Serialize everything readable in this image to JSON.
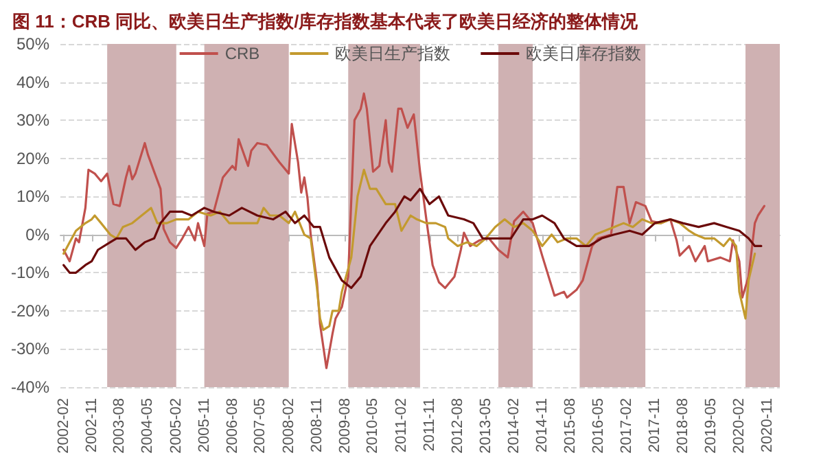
{
  "chart_data": {
    "type": "line",
    "title": "图 11：CRB 同比、欧美日生产指数/库存指数基本代表了欧美日经济的整体情况",
    "xlim": [
      "2002-01",
      "2021-03"
    ],
    "xticks": [
      "2002-02",
      "2002-11",
      "2003-08",
      "2004-05",
      "2005-02",
      "2005-11",
      "2006-08",
      "2007-05",
      "2008-02",
      "2008-11",
      "2009-08",
      "2010-05",
      "2011-02",
      "2011-11",
      "2012-08",
      "2013-05",
      "2014-02",
      "2014-11",
      "2015-08",
      "2016-05",
      "2017-02",
      "2017-11",
      "2018-08",
      "2019-05",
      "2020-02",
      "2020-11"
    ],
    "ylim": [
      -40,
      50
    ],
    "yticks": [
      {
        "value": -40,
        "label": "-40%"
      },
      {
        "value": -30,
        "label": "-30%"
      },
      {
        "value": -20,
        "label": "-20%"
      },
      {
        "value": -10,
        "label": "-10%"
      },
      {
        "value": 0,
        "label": "0%"
      },
      {
        "value": 10,
        "label": "10%"
      },
      {
        "value": 20,
        "label": "20%"
      },
      {
        "value": 30,
        "label": "30%"
      },
      {
        "value": 40,
        "label": "40%"
      },
      {
        "value": 50,
        "label": "50%"
      }
    ],
    "grid": "y",
    "legend": "top",
    "marker": "none",
    "line_style": "solid",
    "bands": [
      {
        "axis": "x",
        "from": "2003-04",
        "to": "2005-02",
        "color": "#cfb1b2"
      },
      {
        "axis": "x",
        "from": "2005-11",
        "to": "2008-02",
        "color": "#cfb1b2"
      },
      {
        "axis": "x",
        "from": "2009-09",
        "to": "2011-08",
        "color": "#cfb1b2"
      },
      {
        "axis": "x",
        "from": "2013-09",
        "to": "2014-08",
        "color": "#cfb1b2"
      },
      {
        "axis": "x",
        "from": "2015-11",
        "to": "2017-08",
        "color": "#cfb1b2"
      },
      {
        "axis": "x",
        "from": "2020-04",
        "to": "2021-03",
        "color": "#cfb1b2"
      }
    ],
    "series": [
      {
        "name": "CRB",
        "color": "#c0504d",
        "x": [
          "2002-02",
          "2002-04",
          "2002-06",
          "2002-07",
          "2002-09",
          "2002-10",
          "2002-12",
          "2003-02",
          "2003-04",
          "2003-06",
          "2003-08",
          "2003-10",
          "2003-11",
          "2003-12",
          "2004-01",
          "2004-04",
          "2004-05",
          "2004-07",
          "2004-09",
          "2004-10",
          "2004-12",
          "2005-02",
          "2005-04",
          "2005-06",
          "2005-08",
          "2005-09",
          "2005-11",
          "2005-12",
          "2006-02",
          "2006-05",
          "2006-08",
          "2006-09",
          "2006-10",
          "2007-01",
          "2007-02",
          "2007-04",
          "2007-07",
          "2007-11",
          "2008-02",
          "2008-03",
          "2008-05",
          "2008-06",
          "2008-07",
          "2008-08",
          "2008-09",
          "2008-11",
          "2008-12",
          "2009-02",
          "2009-04",
          "2009-05",
          "2009-07",
          "2009-09",
          "2009-11",
          "2010-01",
          "2010-02",
          "2010-03",
          "2010-05",
          "2010-07",
          "2010-09",
          "2010-10",
          "2010-11",
          "2011-01",
          "2011-02",
          "2011-04",
          "2011-06",
          "2011-08",
          "2011-10",
          "2011-12",
          "2012-02",
          "2012-04",
          "2012-07",
          "2012-09",
          "2012-10",
          "2012-12",
          "2013-03",
          "2013-06",
          "2013-09",
          "2013-12",
          "2014-02",
          "2014-05",
          "2014-06",
          "2014-08",
          "2014-11",
          "2015-03",
          "2015-06",
          "2015-07",
          "2015-10",
          "2015-12",
          "2016-03",
          "2016-05",
          "2016-09",
          "2016-11",
          "2017-01",
          "2017-03",
          "2017-05",
          "2017-08",
          "2017-10",
          "2018-01",
          "2018-04",
          "2018-06",
          "2018-07",
          "2018-10",
          "2018-12",
          "2019-03",
          "2019-04",
          "2019-08",
          "2019-11",
          "2019-12",
          "2020-02",
          "2020-03",
          "2020-05",
          "2020-07",
          "2020-08",
          "2020-10"
        ],
        "values": [
          -4,
          -7,
          -1,
          -2,
          7,
          17,
          16,
          14,
          16,
          8,
          7.5,
          15,
          18,
          14.5,
          16,
          24,
          21,
          16.5,
          12,
          1.5,
          -2,
          -3.5,
          -1,
          2,
          -1.5,
          3,
          -3,
          5.5,
          6,
          15,
          18,
          17,
          25,
          18,
          22,
          24,
          23.5,
          19,
          16,
          29,
          19,
          11,
          15,
          9.5,
          0,
          -12.5,
          -23.5,
          -35,
          -26,
          -22,
          -19,
          -11,
          30,
          33,
          37,
          33,
          16.5,
          18,
          30,
          19,
          16.5,
          33,
          33,
          28,
          31.5,
          16.5,
          4,
          -8,
          -12.5,
          -14,
          -11,
          -4,
          0.5,
          -3,
          -1.5,
          -1,
          -4,
          -6,
          3.5,
          6,
          5,
          3,
          -5.5,
          -16,
          -15,
          -16.5,
          -14.5,
          -12,
          -3,
          -1,
          0,
          12.5,
          12.5,
          3,
          8.5,
          7.5,
          3.5,
          3,
          4,
          -1.5,
          -5.5,
          -3,
          -7,
          -3,
          -7,
          -6,
          -7,
          -1.5,
          -7,
          -16.5,
          -11,
          3,
          5,
          7.5
        ]
      },
      {
        "name": "欧美日生产指数",
        "color": "#c39a2e",
        "x": [
          "2002-02",
          "2002-04",
          "2002-06",
          "2002-09",
          "2002-11",
          "2002-12",
          "2003-02",
          "2003-05",
          "2003-07",
          "2003-09",
          "2003-12",
          "2004-03",
          "2004-06",
          "2004-08",
          "2004-11",
          "2005-02",
          "2005-06",
          "2005-09",
          "2006-01",
          "2006-04",
          "2006-07",
          "2006-11",
          "2007-04",
          "2007-06",
          "2007-08",
          "2007-11",
          "2008-02",
          "2008-04",
          "2008-07",
          "2008-09",
          "2008-11",
          "2008-12",
          "2009-01",
          "2009-03",
          "2009-04",
          "2009-06",
          "2009-07",
          "2009-10",
          "2009-12",
          "2010-02",
          "2010-04",
          "2010-06",
          "2010-09",
          "2010-12",
          "2011-02",
          "2011-05",
          "2011-07",
          "2011-10",
          "2012-01",
          "2012-04",
          "2012-05",
          "2012-08",
          "2012-11",
          "2013-02",
          "2013-05",
          "2013-08",
          "2013-11",
          "2014-02",
          "2014-05",
          "2014-08",
          "2014-11",
          "2015-02",
          "2015-04",
          "2015-07",
          "2015-10",
          "2016-01",
          "2016-04",
          "2016-07",
          "2016-10",
          "2017-01",
          "2017-04",
          "2017-07",
          "2017-10",
          "2018-01",
          "2018-04",
          "2018-07",
          "2018-10",
          "2018-12",
          "2019-03",
          "2019-06",
          "2019-09",
          "2019-11",
          "2020-01",
          "2020-02",
          "2020-04",
          "2020-05",
          "2020-07"
        ],
        "values": [
          -5,
          -2,
          1,
          3,
          4,
          5,
          3,
          0,
          -1,
          2,
          3,
          5,
          7,
          3,
          3,
          4,
          4,
          6,
          5,
          6,
          3,
          3,
          3,
          7,
          5,
          5,
          3,
          6,
          0,
          -1,
          -14,
          -22,
          -25,
          -24,
          -20,
          -20,
          -15,
          -6,
          10,
          17,
          12,
          12,
          8,
          8,
          1,
          5,
          4,
          3,
          3,
          2,
          -1,
          -3,
          -2,
          -3,
          -1,
          2,
          4,
          2,
          3,
          1,
          -3,
          0,
          -2,
          -1,
          -1,
          -3,
          0,
          1,
          2,
          3,
          2,
          4,
          3,
          3,
          4,
          3,
          1,
          0,
          -1,
          -1,
          -3,
          -1,
          -3,
          -15,
          -22,
          -12,
          -5
        ]
      },
      {
        "name": "欧美日库存指数",
        "color": "#6b0a0a",
        "x": [
          "2002-02",
          "2002-04",
          "2002-06",
          "2002-09",
          "2002-11",
          "2003-01",
          "2003-05",
          "2003-07",
          "2003-10",
          "2004-01",
          "2004-04",
          "2004-07",
          "2004-09",
          "2004-12",
          "2005-04",
          "2005-07",
          "2005-11",
          "2006-02",
          "2006-07",
          "2006-11",
          "2007-04",
          "2007-09",
          "2008-01",
          "2008-04",
          "2008-07",
          "2008-10",
          "2008-12",
          "2009-03",
          "2009-07",
          "2009-10",
          "2010-01",
          "2010-04",
          "2010-09",
          "2010-12",
          "2011-03",
          "2011-05",
          "2011-08",
          "2011-11",
          "2012-02",
          "2012-05",
          "2012-10",
          "2013-01",
          "2013-04",
          "2013-06",
          "2013-10",
          "2014-01",
          "2014-05",
          "2014-08",
          "2014-11",
          "2015-03",
          "2015-06",
          "2015-10",
          "2016-02",
          "2016-06",
          "2016-10",
          "2017-03",
          "2017-07",
          "2017-11",
          "2018-04",
          "2018-08",
          "2019-01",
          "2019-06",
          "2019-10",
          "2020-02",
          "2020-05",
          "2020-07",
          "2020-09"
        ],
        "values": [
          -8,
          -10,
          -10,
          -8,
          -7,
          -4,
          -2,
          -1,
          -1,
          -4,
          -2,
          -1,
          3,
          6,
          6,
          5,
          7,
          6,
          5,
          7,
          5,
          4,
          6,
          3,
          5,
          2,
          2,
          -6,
          -12,
          -14,
          -11,
          -3,
          3,
          6,
          10,
          9,
          12,
          8,
          10,
          5,
          4,
          3,
          -1,
          -1,
          -1,
          -1,
          4,
          4,
          5,
          3,
          -1,
          -3,
          -3,
          -1,
          0,
          1,
          0,
          3,
          4,
          3,
          2,
          3,
          2,
          1,
          -1,
          -3,
          -3
        ]
      }
    ]
  }
}
